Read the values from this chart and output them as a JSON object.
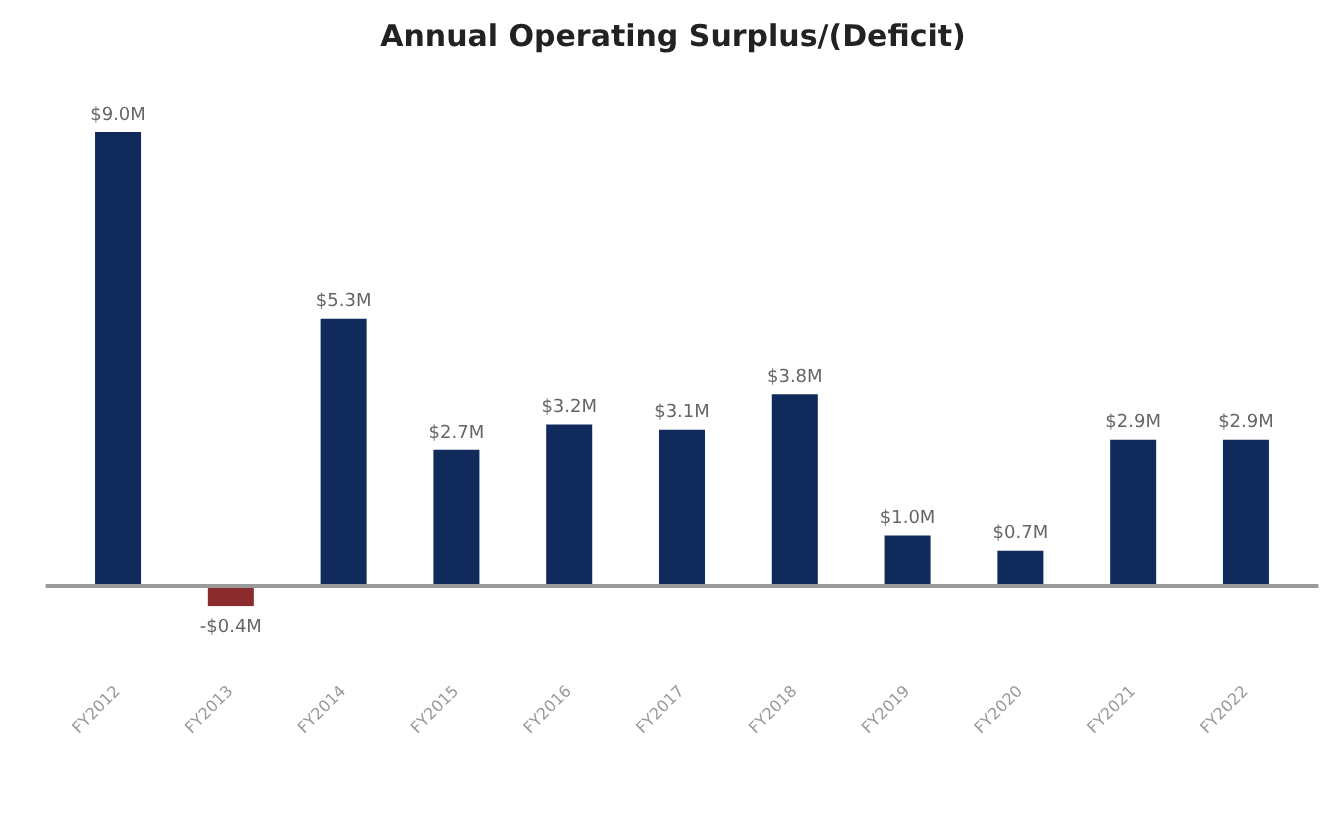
{
  "chart_data": {
    "type": "bar",
    "title": "Annual Operating Surplus/(Deficit)",
    "categories": [
      "FY2012",
      "FY2013",
      "FY2014",
      "FY2015",
      "FY2016",
      "FY2017",
      "FY2018",
      "FY2019",
      "FY2020",
      "FY2021",
      "FY2022"
    ],
    "values": [
      9.0,
      -0.4,
      5.3,
      2.7,
      3.2,
      3.1,
      3.8,
      1.0,
      0.7,
      2.9,
      2.9
    ],
    "colors": [
      "#102a5c",
      "#8b2b2b",
      "#102a5c",
      "#102a5c",
      "#102a5c",
      "#102a5c",
      "#102a5c",
      "#102a5c",
      "#102a5c",
      "#102a5c",
      "#102a5c"
    ],
    "value_labels": [
      "$9.0M",
      "-$0.4M",
      "$5.3M",
      "$2.7M",
      "$3.2M",
      "$3.1M",
      "$3.8M",
      "$1.0M",
      "$0.7M",
      "$2.9M",
      "$2.9M"
    ],
    "grid": false,
    "legend": false
  }
}
